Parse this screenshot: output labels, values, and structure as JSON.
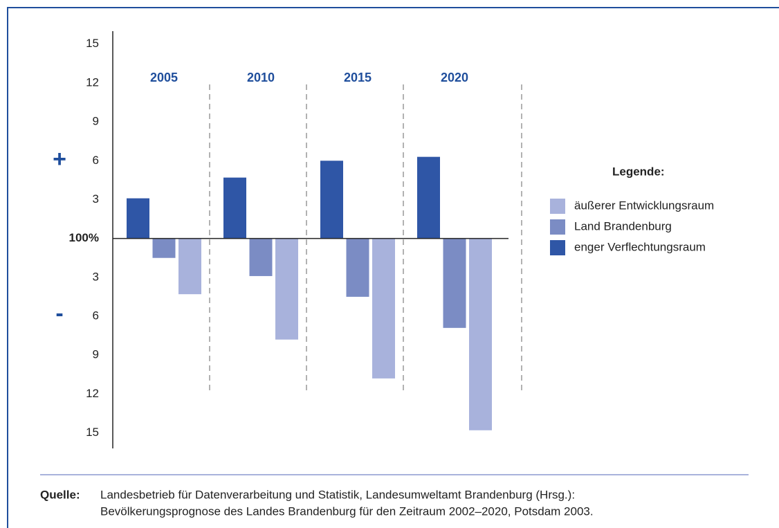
{
  "chart_data": {
    "type": "bar",
    "categories": [
      "2005",
      "2010",
      "2015",
      "2020"
    ],
    "series": [
      {
        "name": "äußerer Entwicklungsraum",
        "color": "#a8b2dc",
        "values": [
          -4.3,
          -7.8,
          -10.8,
          -14.8
        ]
      },
      {
        "name": "Land Brandenburg",
        "color": "#7b8cc4",
        "values": [
          -1.5,
          -2.9,
          -4.5,
          -6.9
        ]
      },
      {
        "name": "enger Verflechtungsraum",
        "color": "#2f56a6",
        "values": [
          3.1,
          4.7,
          6.0,
          6.3
        ]
      }
    ],
    "ylim": [
      -16.2,
      16
    ],
    "yticks": [
      15,
      12,
      9,
      6,
      3,
      {
        "value": 0,
        "label": "100%"
      },
      {
        "value": -3,
        "label": "3"
      },
      {
        "value": -6,
        "label": "6"
      },
      {
        "value": -9,
        "label": "9"
      },
      {
        "value": -12,
        "label": "12"
      },
      {
        "value": -15,
        "label": "15"
      }
    ],
    "grid": false,
    "annotations": [
      "+",
      "-"
    ],
    "legend_title": "Legende:",
    "source_label": "Quelle:",
    "source_lines": [
      "Landesbetrieb für Datenverarbeitung und Statistik, Landesumweltamt Brandenburg (Hrsg.):",
      "Bevölkerungsprognose des Landes Brandenburg für den Zeitraum 2002–2020, Potsdam 2003."
    ]
  }
}
